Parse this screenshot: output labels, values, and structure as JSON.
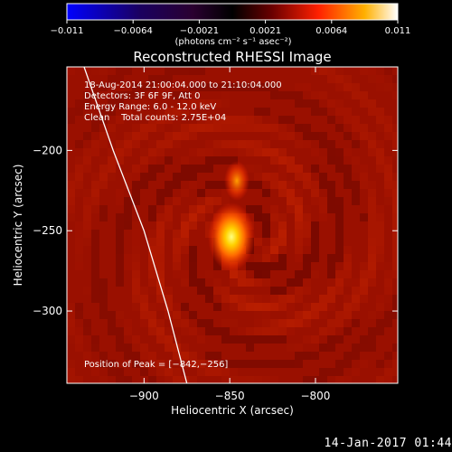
{
  "colorbar": {
    "ticks": [
      "−0.011",
      "−0.0064",
      "−0.0021",
      "0.0021",
      "0.0064",
      "0.011"
    ],
    "unit_label": "(photons cm⁻² s⁻¹ asec⁻²)",
    "colors": [
      "#0000ff",
      "#1a0060",
      "#2a0030",
      "#000000",
      "#6a0000",
      "#ff2000",
      "#ffb000",
      "#ffffff"
    ]
  },
  "chart_data": {
    "type": "heatmap",
    "title": "Reconstructed RHESSI Image",
    "xlabel": "Heliocentric X (arcsec)",
    "ylabel": "Heliocentric Y (arcsec)",
    "xlim": [
      -945,
      -752
    ],
    "ylim": [
      -345,
      -148
    ],
    "xticks": [
      -900,
      -850,
      -800
    ],
    "yticks": [
      -200,
      -250,
      -300
    ],
    "peak": [
      -842,
      -256
    ],
    "limb_curve": {
      "x": [
        -935,
        -918,
        -900,
        -886,
        -875
      ],
      "y": [
        -148,
        -200,
        -250,
        -300,
        -345
      ]
    },
    "annotations": {
      "line1": "18-Aug-2014 21:00:04.000 to 21:10:04.000",
      "line2": "Detectors: 3F 6F 9F, Att 0",
      "line3": "Energy Range: 6.0 - 12.0 keV",
      "line4": "Clean    Total counts: 2.75E+04",
      "peak_text": "Position of Peak = [−842,−256]"
    }
  },
  "footer": {
    "date": "14-Jan-2017 01:44"
  }
}
